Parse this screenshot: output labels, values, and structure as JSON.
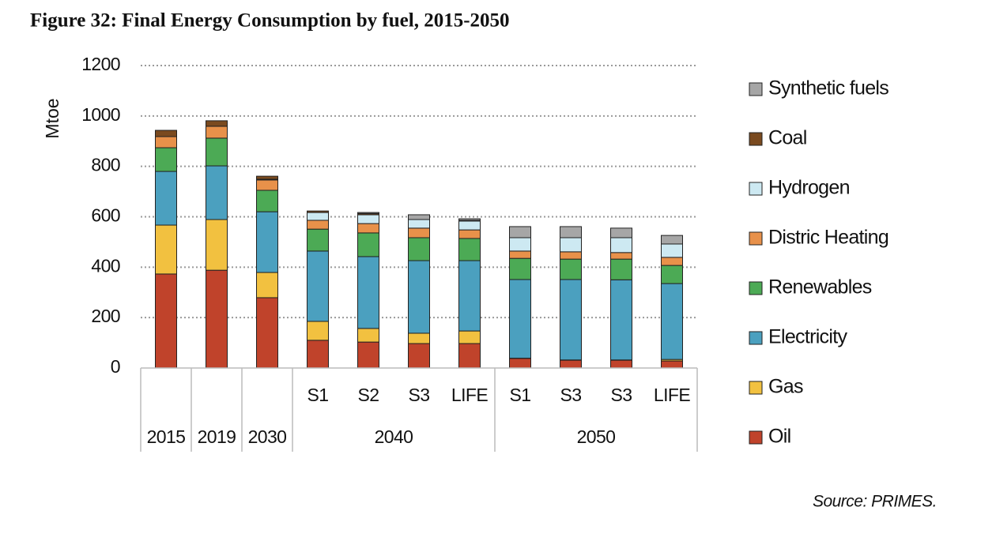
{
  "chart_data": {
    "type": "stacked_bar",
    "title": "Figure 32: Final Energy Consumption by fuel, 2015-2050",
    "y_label": "Mtoe",
    "source": "Source: PRIMES.",
    "categories": [
      "2015",
      "2019",
      "2030",
      "S1",
      "S2",
      "S3",
      "LIFE",
      "S1",
      "S3",
      "S3",
      "LIFE"
    ],
    "category_groups": [
      {
        "name": "2040",
        "members": [
          3,
          4,
          5,
          6
        ]
      },
      {
        "name": "2050",
        "members": [
          7,
          8,
          9,
          10
        ]
      }
    ],
    "series": [
      {
        "name": "Oil",
        "color": "#c0432b",
        "values": [
          373,
          388,
          279,
          110,
          103,
          97,
          97,
          38,
          31,
          31,
          28
        ]
      },
      {
        "name": "Gas",
        "color": "#f2c140",
        "values": [
          194,
          201,
          100,
          75,
          54,
          41,
          50,
          1,
          1,
          1,
          6
        ]
      },
      {
        "name": "Electricity",
        "color": "#4ba0bf",
        "values": [
          213,
          213,
          241,
          279,
          285,
          288,
          279,
          312,
          319,
          318,
          301
        ]
      },
      {
        "name": "Renewables",
        "color": "#4caa55",
        "values": [
          94,
          110,
          85,
          87,
          94,
          91,
          88,
          84,
          81,
          82,
          72
        ]
      },
      {
        "name": "Distric Heating",
        "color": "#e8914a",
        "values": [
          44,
          47,
          41,
          35,
          37,
          38,
          34,
          29,
          29,
          26,
          32
        ]
      },
      {
        "name": "Hydrogen",
        "color": "#cde9f2",
        "values": [
          0,
          0,
          3,
          31,
          35,
          34,
          35,
          53,
          56,
          59,
          53
        ]
      },
      {
        "name": "Coal",
        "color": "#7a4a1f",
        "values": [
          25,
          22,
          12,
          6,
          5,
          0,
          3,
          0,
          0,
          0,
          0
        ]
      },
      {
        "name": "Synthetic fuels",
        "color": "#a6a6a6",
        "values": [
          0,
          0,
          0,
          0,
          4,
          19,
          6,
          44,
          44,
          38,
          34
        ]
      }
    ],
    "ylim": [
      0,
      1200
    ],
    "yticks": [
      0,
      200,
      400,
      600,
      800,
      1000,
      1200
    ],
    "grid": true,
    "legend": "right"
  }
}
